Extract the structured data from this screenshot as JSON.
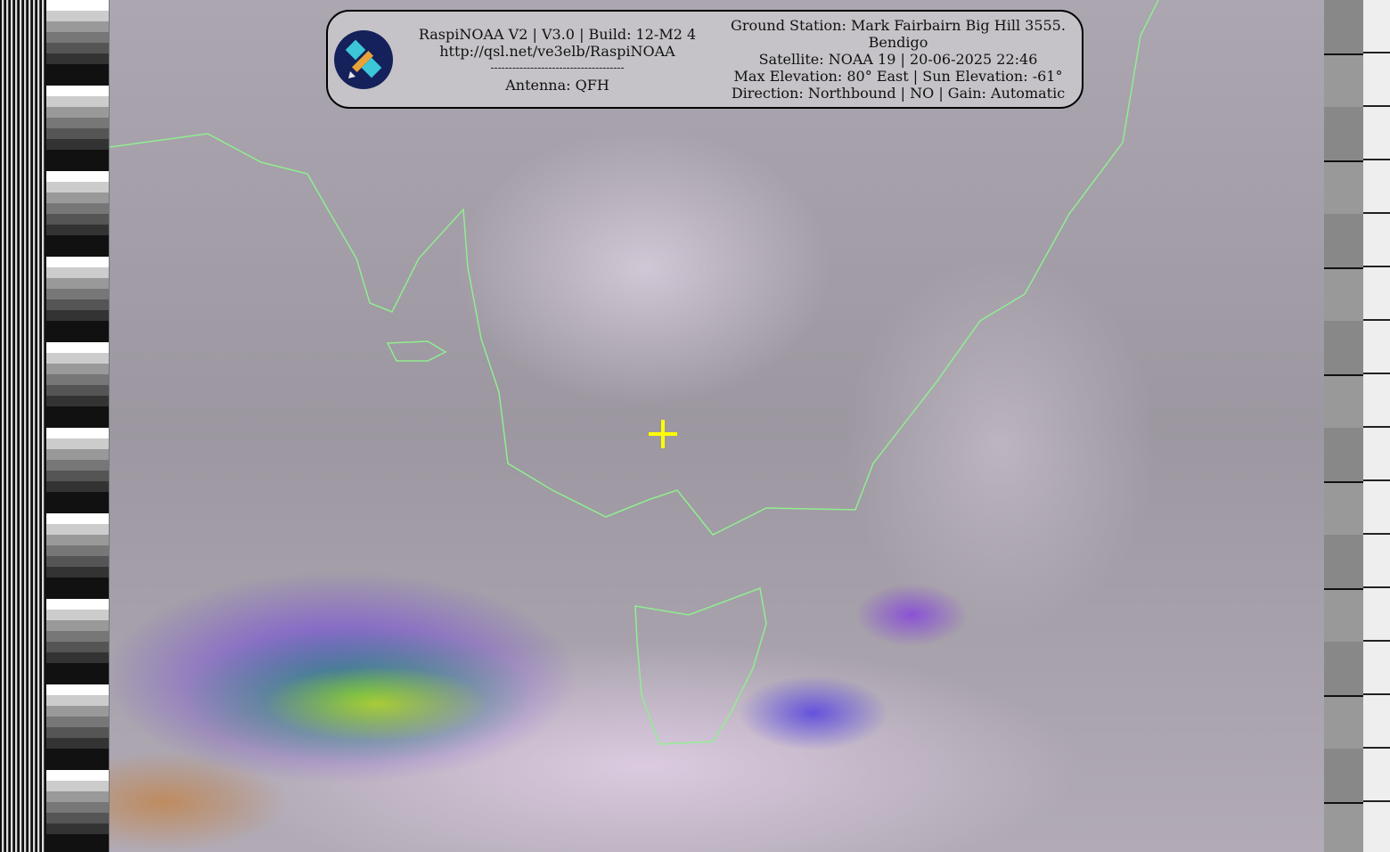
{
  "header": {
    "software_line": "RaspiNOAA V2 | V3.0 | Build: 12-M2 4",
    "url": "http://qsl.net/ve3elb/RaspiNOAA",
    "separator": "-------------------------------------",
    "antenna": "Antenna: QFH",
    "ground_station": "Ground Station: Mark Fairbairn Big Hill 3555.",
    "ground_station_city": "Bendigo",
    "satellite": "Satellite: NOAA 19 | 20-06-2025 22:46",
    "elevation": "Max Elevation: 80° East | Sun Elevation: -61°",
    "direction": "Direction: Northbound | NO | Gain: Automatic"
  },
  "logo_icon": "satellite-icon",
  "colors": {
    "coastline": "#90ee90",
    "marker": "#ffff00",
    "logo_bg": "#14215a"
  }
}
